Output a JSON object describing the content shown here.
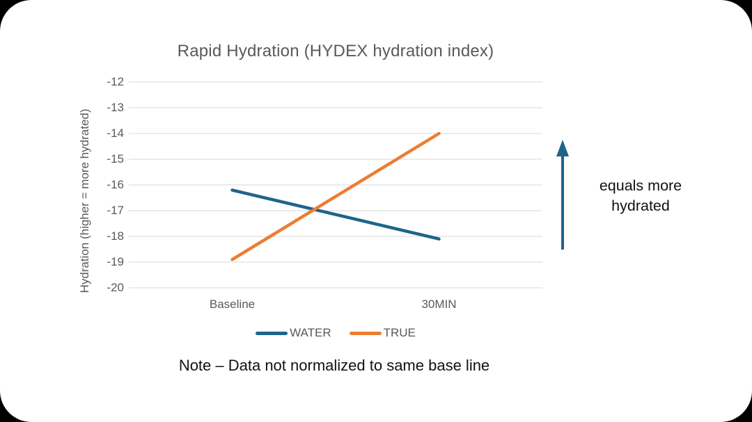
{
  "chart_data": {
    "type": "line",
    "title": "Rapid Hydration (HYDEX hydration index)",
    "categories": [
      "Baseline",
      "30MIN"
    ],
    "series": [
      {
        "name": "WATER",
        "color": "#1F6489",
        "values": [
          -16.2,
          -18.1
        ]
      },
      {
        "name": "TRUE",
        "color": "#ED7D31",
        "values": [
          -18.9,
          -14.0
        ]
      }
    ],
    "xlabel": "",
    "ylabel": "Hydration (higher = more hydrated)",
    "ylim": [
      -20,
      -12
    ],
    "ytick_step": 1,
    "grid": true,
    "legend_position": "bottom",
    "gridline_color": "#D9D9D9",
    "axis_text_color": "#595959",
    "title_color": "#595959"
  },
  "annotation": {
    "arrow_icon": "up-arrow",
    "arrow_color": "#1F6489",
    "label": "equals more hydrated"
  },
  "note": "Note – Data not normalized to same base line"
}
